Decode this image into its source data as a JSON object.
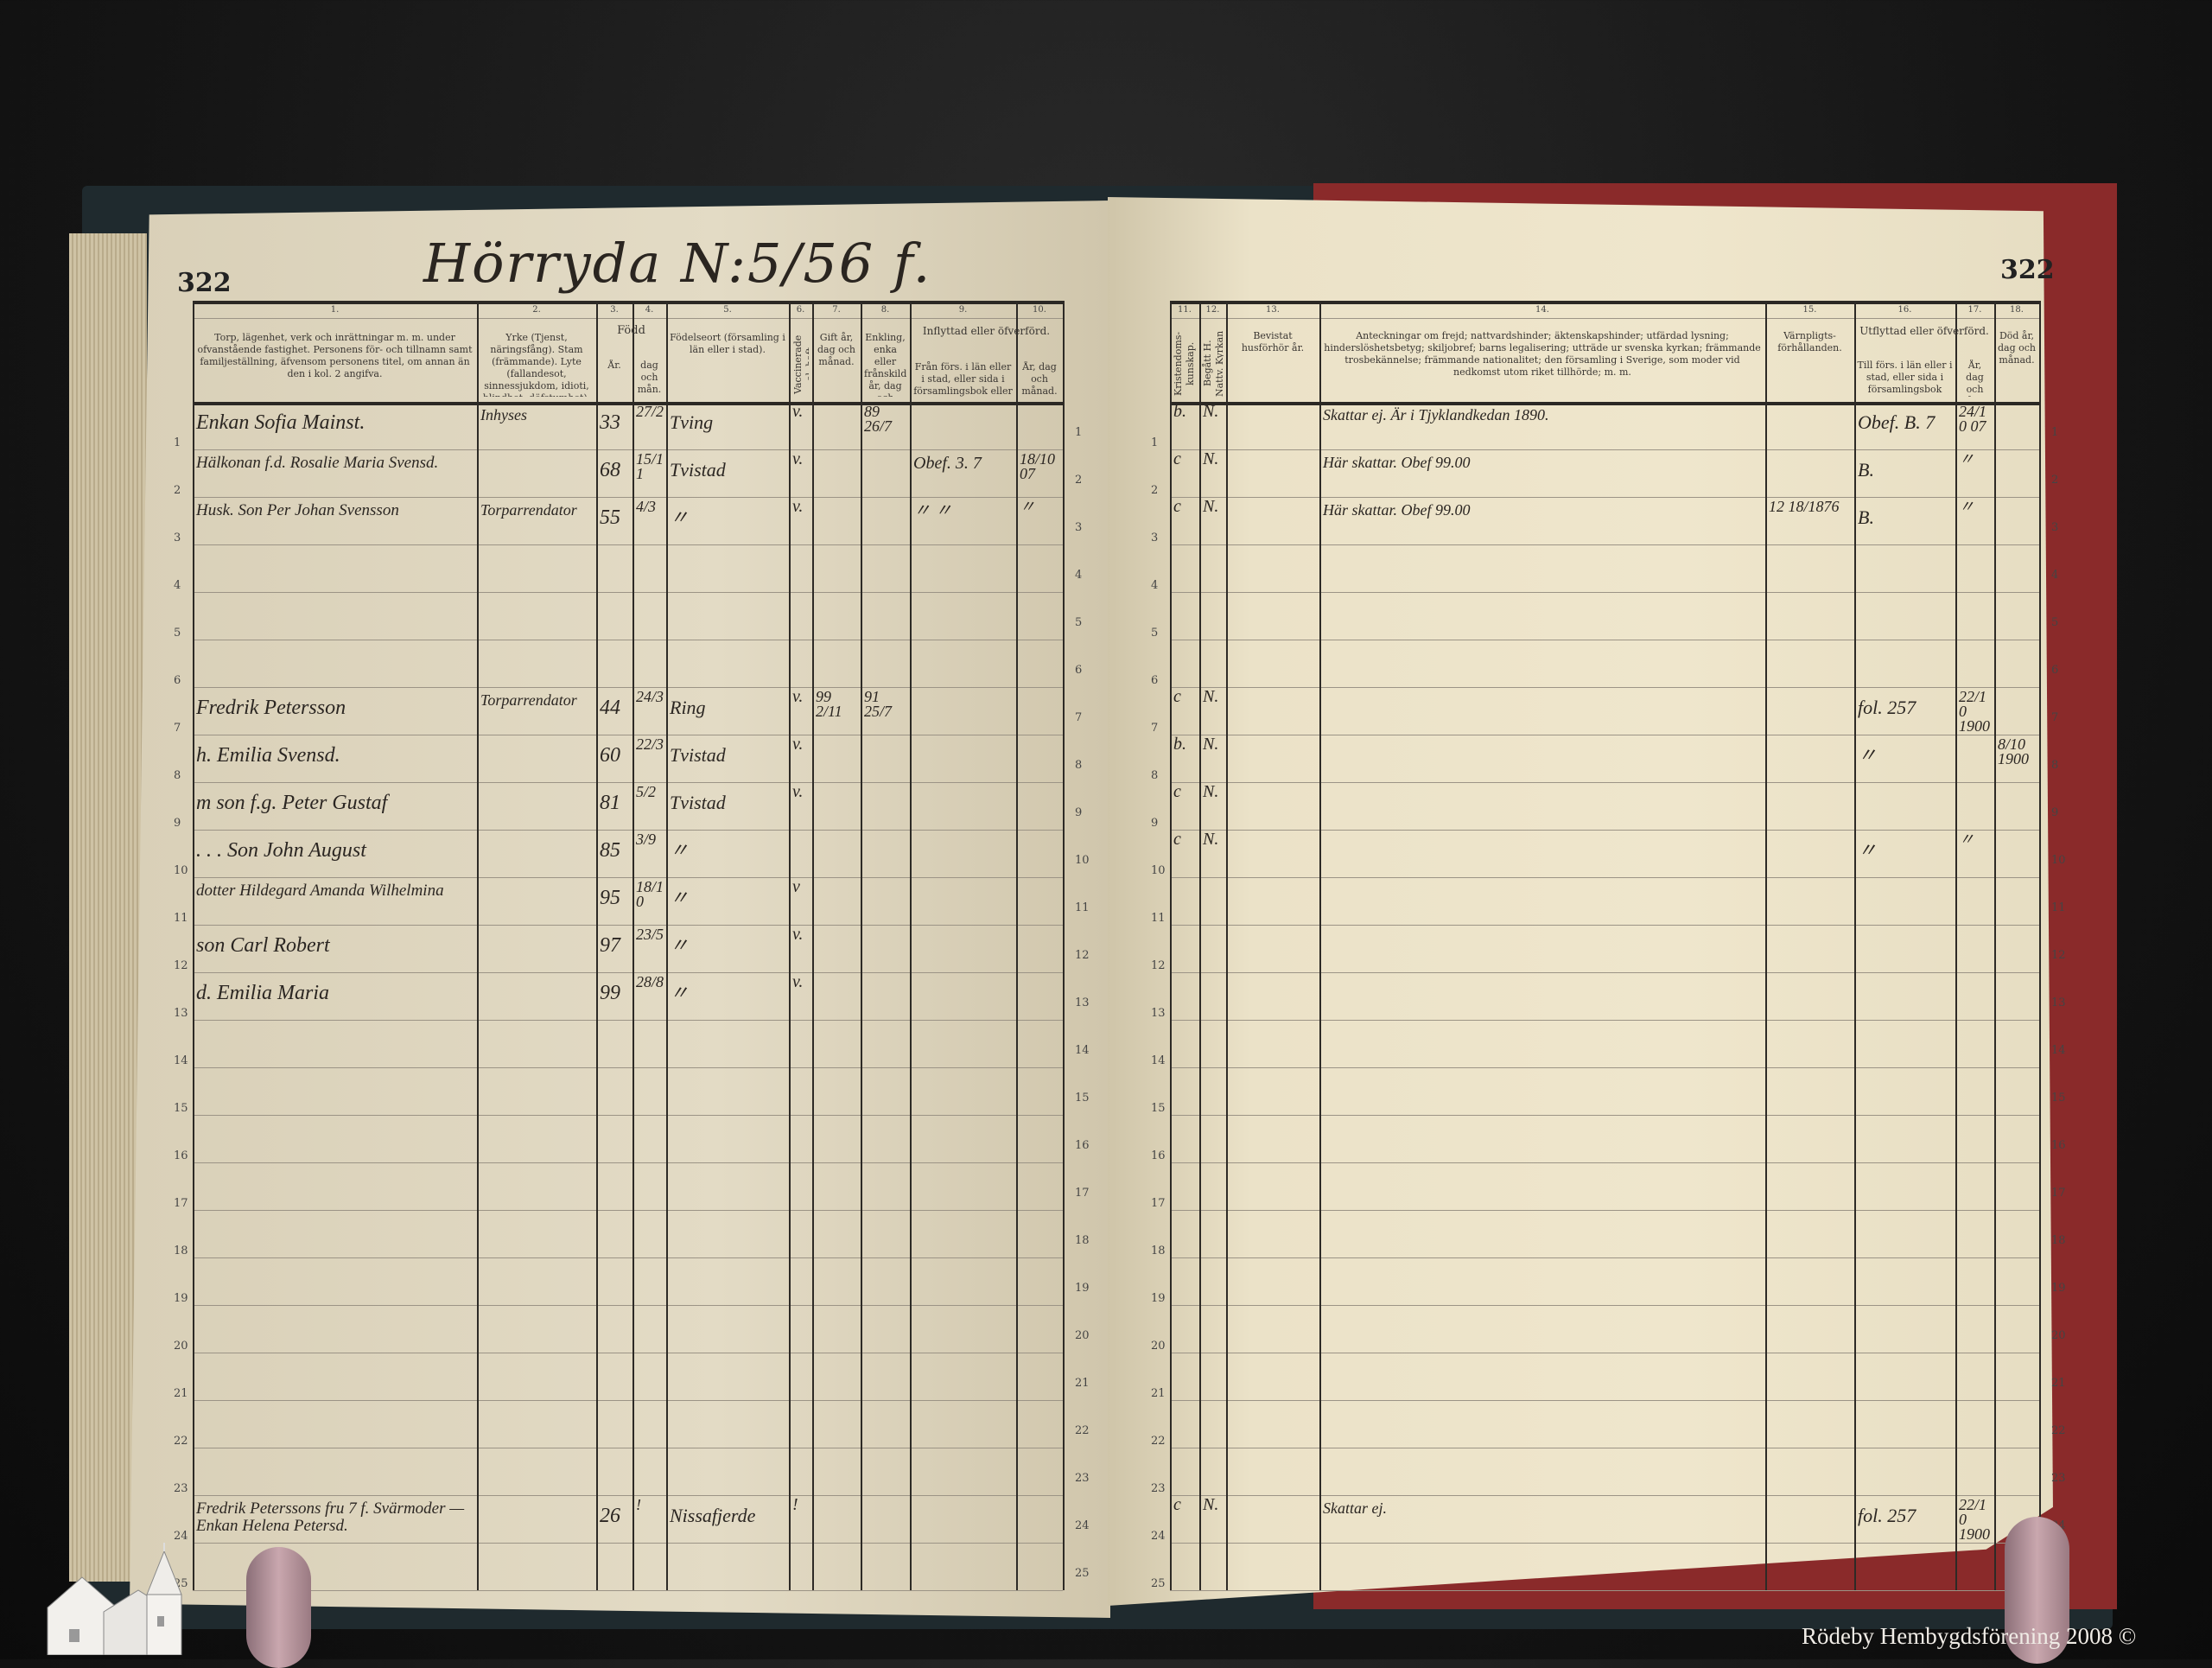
{
  "left_page": {
    "page_number": "322",
    "title": "Hörryda N:5/56 f.",
    "column_numbers": [
      "1.",
      "2.",
      "3.",
      "4.",
      "5.",
      "6.",
      "7.",
      "8.",
      "9.",
      "10."
    ],
    "headers": {
      "col1": "Torp, lägenhet, verk och inrättningar m. m. under ofvanstående fastighet. Personens för- och tillnamn samt familjeställning, äfvensom personens titel, om annan än den i kol. 2 angifva.",
      "col2": "Yrke (Tjenst, näringsfång). Stam (främmande). Lyte (fallandesot, sinnessjukdom, idioti, blindhet, döfstumhet).",
      "fodd": "Född",
      "col3": "År.",
      "col4": "dag och mån.",
      "col5": "Födelseort (församling i län eller i stad).",
      "col6": "Vaccinerade el. haft koppor.",
      "col7": "Gift år, dag och månad.",
      "col8": "Enkling, enka eller frånskild år, dag och månad.",
      "inflyttad": "Inflyttad eller öfverförd.",
      "col9": "Från förs. i län eller i stad, eller sida i församlingsbok eller boken öfver obefintl.",
      "col10": "År, dag och månad."
    },
    "rows": [
      {
        "row": 1,
        "name": "Enkan Sofia Mainst.",
        "occupation": "Inhyses",
        "year": "33",
        "daymonth": "27/2",
        "birthplace": "Tving",
        "vacc": "v.",
        "married": "",
        "widowed": "89 26/7",
        "from": "",
        "date": ""
      },
      {
        "row": 2,
        "name": "Hälkonan f.d. Rosalie Maria Svensd.",
        "occupation": "",
        "year": "68",
        "daymonth": "15/11",
        "birthplace": "Tvistad",
        "vacc": "v.",
        "married": "",
        "widowed": "",
        "from": "Obef. 3. 7",
        "date": "18/10 07"
      },
      {
        "row": 3,
        "name": "Husk. Son Per Johan Svensson",
        "occupation": "Torparrendator",
        "year": "55",
        "daymonth": "4/3",
        "birthplace": "〃",
        "vacc": "v.",
        "married": "",
        "widowed": "",
        "from": "〃  〃",
        "date": "〃"
      },
      {
        "row": 7,
        "name": "Fredrik Petersson",
        "occupation": "Torparrendator",
        "year": "44",
        "daymonth": "24/3",
        "birthplace": "Ring",
        "vacc": "v.",
        "married": "99 2/11",
        "widowed": "91 25/7",
        "from": "",
        "date": ""
      },
      {
        "row": 8,
        "name": "h. Emilia Svensd.",
        "occupation": "",
        "year": "60",
        "daymonth": "22/3",
        "birthplace": "Tvistad",
        "vacc": "v.",
        "married": "",
        "widowed": "",
        "from": "",
        "date": ""
      },
      {
        "row": 9,
        "name": "m son f.g. Peter Gustaf",
        "occupation": "",
        "year": "81",
        "daymonth": "5/2",
        "birthplace": "Tvistad",
        "vacc": "v.",
        "married": "",
        "widowed": "",
        "from": "",
        "date": ""
      },
      {
        "row": 10,
        "name": ". . . Son John August",
        "occupation": "",
        "year": "85",
        "daymonth": "3/9",
        "birthplace": "〃",
        "vacc": "",
        "married": "",
        "widowed": "",
        "from": "",
        "date": ""
      },
      {
        "row": 11,
        "name": "dotter Hildegard Amanda Wilhelmina",
        "occupation": "",
        "year": "95",
        "daymonth": "18/10",
        "birthplace": "〃",
        "vacc": "v",
        "married": "",
        "widowed": "",
        "from": "",
        "date": ""
      },
      {
        "row": 12,
        "name": "son Carl Robert",
        "occupation": "",
        "year": "97",
        "daymonth": "23/5",
        "birthplace": "〃",
        "vacc": "v.",
        "married": "",
        "widowed": "",
        "from": "",
        "date": ""
      },
      {
        "row": 13,
        "name": "d. Emilia Maria",
        "occupation": "",
        "year": "99",
        "daymonth": "28/8",
        "birthplace": "〃",
        "vacc": "v.",
        "married": "",
        "widowed": "",
        "from": "",
        "date": ""
      },
      {
        "row": 24,
        "name": "Fredrik Peterssons fru 7 f. Svärmoder — Enkan Helena Petersd.",
        "occupation": "",
        "year": "26",
        "daymonth": "!",
        "birthplace": "Nissafjerde",
        "vacc": "!",
        "married": "",
        "widowed": "",
        "from": "",
        "date": ""
      }
    ]
  },
  "right_page": {
    "page_number": "322",
    "column_numbers": [
      "11.",
      "12.",
      "13.",
      "14.",
      "15.",
      "16.",
      "17.",
      "18."
    ],
    "headers": {
      "col11": "Kristendoms-kunskap.",
      "col12": "Begått H. Nattv. Kyrkan af.",
      "col13": "Bevistat husförhör år.",
      "col14": "Anteckningar om frejd; nattvardshinder; äktenskapshinder; utfärdad lysning; hinderslöshetsbetyg; skiljobref; barns legalisering; utträde ur svenska kyrkan; främmande trosbekännelse; främmande nationalitet; den församling i Sverige, som moder vid nedkomst utom riket tillhörde; m. m.",
      "col15": "Värnpligts-förhållanden.",
      "utflyttad": "Utflyttad eller öfverförd.",
      "col16": "Till förs. i län eller i stad, eller sida i församlingsbok eller boken öfver obefintl.",
      "col17": "År, dag och månad.",
      "col18": "Död år, dag och månad."
    },
    "rows": [
      {
        "row": 1,
        "knowledge": "b.",
        "communion": "N.",
        "hearing": "",
        "notes": "Skattar ej. Är i Tjyklandkedan 1890.",
        "military": "",
        "to": "Obef. B. 7",
        "date": "24/10 07",
        "death": ""
      },
      {
        "row": 2,
        "knowledge": "c",
        "communion": "N.",
        "hearing": "",
        "notes": "Här skattar. Obef 99.00",
        "military": "",
        "to": "B.",
        "date": "〃",
        "death": ""
      },
      {
        "row": 3,
        "knowledge": "c",
        "communion": "N.",
        "hearing": "",
        "notes": "Här skattar. Obef 99.00",
        "military": "12 18/1876",
        "to": "B.",
        "date": "〃",
        "death": ""
      },
      {
        "row": 7,
        "knowledge": "c",
        "communion": "N.",
        "hearing": "",
        "notes": "",
        "military": "",
        "to": "fol. 257",
        "date": "22/10 1900",
        "death": ""
      },
      {
        "row": 8,
        "knowledge": "b.",
        "communion": "N.",
        "hearing": "",
        "notes": "",
        "military": "",
        "to": "〃",
        "date": "",
        "death": "8/10 1900"
      },
      {
        "row": 9,
        "knowledge": "c",
        "communion": "N.",
        "hearing": "",
        "notes": "",
        "military": "",
        "to": "",
        "date": "",
        "death": ""
      },
      {
        "row": 10,
        "knowledge": "c",
        "communion": "N.",
        "hearing": "",
        "notes": "",
        "military": "",
        "to": "〃",
        "date": "〃",
        "death": ""
      },
      {
        "row": 24,
        "knowledge": "c",
        "communion": "N.",
        "hearing": "",
        "notes": "Skattar ej.",
        "military": "",
        "to": "fol. 257",
        "date": "22/10 1900",
        "death": ""
      }
    ]
  },
  "row_numbers": [
    "1",
    "2",
    "3",
    "4",
    "5",
    "6",
    "7",
    "8",
    "9",
    "10",
    "11",
    "12",
    "13",
    "14",
    "15",
    "16",
    "17",
    "18",
    "19",
    "20",
    "21",
    "22",
    "23",
    "24",
    "25"
  ],
  "watermark": "Rödeby Hembygdsförening 2008 ©"
}
